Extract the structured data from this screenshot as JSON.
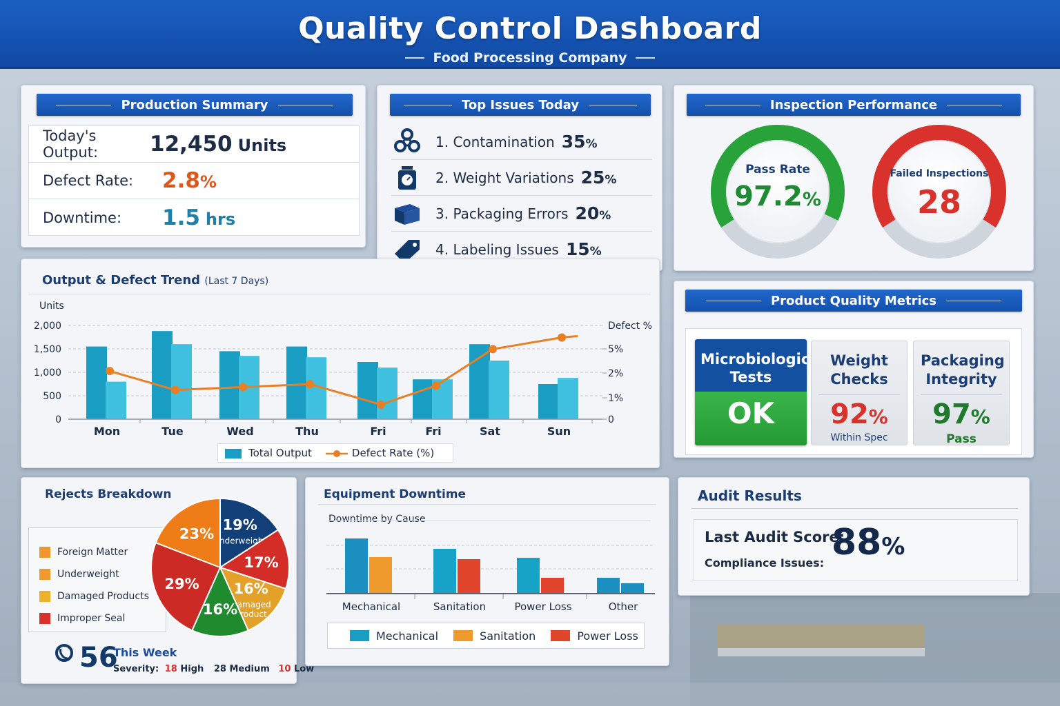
{
  "header": {
    "title": "Quality Control Dashboard",
    "subtitle": "Food Processing Company"
  },
  "production_summary": {
    "title": "Production Summary",
    "rows": [
      {
        "label": "Today's Output:",
        "value": "12,450",
        "unit": "Units",
        "color": "#1d2b44"
      },
      {
        "label": "Defect Rate:",
        "value": "2.8",
        "unit": "%",
        "color": "#e0571c"
      },
      {
        "label": "Downtime:",
        "value": "1.5",
        "unit": "hrs",
        "color": "#1f7fa8"
      }
    ]
  },
  "top_issues": {
    "title": "Top Issues Today",
    "items": [
      {
        "label": "1. Contamination",
        "pct": "35",
        "icon": "biohazard-icon"
      },
      {
        "label": "2. Weight Variations",
        "pct": "25",
        "icon": "scale-icon"
      },
      {
        "label": "3. Packaging Errors",
        "pct": "20",
        "icon": "box-icon"
      },
      {
        "label": "4. Labeling Issues",
        "pct": "15",
        "icon": "tag-icon"
      }
    ]
  },
  "inspection": {
    "title": "Inspection Performance",
    "pass": {
      "label": "Pass Rate",
      "value": "97.2",
      "unit": "%",
      "fraction": 0.972,
      "color": "#27a33a"
    },
    "failed": {
      "label": "Failed Inspections",
      "value": "28",
      "color": "#d9312b"
    }
  },
  "trend": {
    "title": "Output & Defect Trend",
    "title_note": "(Last 7 Days)",
    "legend": {
      "output": "Total Output",
      "defect": "Defect Rate (%)"
    }
  },
  "chart_data": {
    "type": "bar",
    "title": "Output & Defect Trend (Last 7 Days)",
    "ylabel": "Units",
    "y2label": "Defect %",
    "categories": [
      "Mon",
      "Tue",
      "Wed",
      "Thu",
      "Fri",
      "Fri",
      "Sat",
      "Sun"
    ],
    "y_ticks": [
      "0",
      "500",
      "1,000",
      "1,500",
      "2,000"
    ],
    "y2_ticks": [
      "0",
      "1%",
      "2%",
      "5%"
    ],
    "ylim": [
      0,
      2000
    ],
    "series": [
      {
        "name": "Total Output",
        "values": [
          1550,
          1880,
          1450,
          1550,
          1220,
          850,
          1600,
          750
        ],
        "color": "#1a9dc3"
      },
      {
        "name": "",
        "values": [
          800,
          1600,
          1350,
          1320,
          1100,
          850,
          1250,
          880
        ],
        "color": "#3fc0de"
      },
      {
        "name": "Defect Rate (%)",
        "values": [
          3.3,
          2.0,
          2.2,
          2.4,
          1.0,
          2.3,
          4.8,
          5.6
        ],
        "color": "#e97f22"
      }
    ],
    "legend_position": "bottom"
  },
  "quality_metrics": {
    "title": "Product Quality Metrics",
    "micro": {
      "title": "Microbiological Tests",
      "value": "OK"
    },
    "weight": {
      "title": "Weight Checks",
      "value": "92",
      "unit": "%",
      "note": "Within Spec"
    },
    "packaging": {
      "title": "Packaging Integrity",
      "value": "97",
      "unit": "%",
      "note": "Pass"
    }
  },
  "rejects": {
    "title": "Rejects Breakdown",
    "legend": [
      {
        "label": "Foreign Matter",
        "color": "#f0962e"
      },
      {
        "label": "Underweight",
        "color": "#ee9a2c"
      },
      {
        "label": "Damaged Products",
        "color": "#f0b12a"
      },
      {
        "label": "Improper Seal",
        "color": "#d9312b"
      }
    ],
    "slices": [
      {
        "pct": "19%",
        "label": "Underweight",
        "value": 19,
        "color": "#123f78"
      },
      {
        "pct": "17%",
        "label": "",
        "value": 17,
        "color": "#d42d27"
      },
      {
        "pct": "16%",
        "label": "Damaged product",
        "value": 16,
        "color": "#e3a12a"
      },
      {
        "pct": "16%",
        "label": "",
        "value": 16,
        "color": "#1f8b2e"
      },
      {
        "pct": "29%",
        "label": "",
        "value": 29,
        "color": "#cc2a24"
      },
      {
        "pct": "23%",
        "label": "",
        "value": 23,
        "color": "#ee7d18"
      }
    ],
    "week_count": "56",
    "week_label": "This Week",
    "severity_label": "Severity:",
    "high_count": "18",
    "high_label": "High",
    "medium_count": "28",
    "medium_label": "Medium",
    "low_count": "10",
    "low_label": "Low"
  },
  "downtime": {
    "title": "Equipment Downtime",
    "subtitle": "Downtime by Cause",
    "categories": [
      "Mechanical",
      "Sanitation",
      "Power Loss",
      "Other"
    ],
    "bars": [
      [
        {
          "v": 80,
          "c": "#1a8fc0"
        },
        {
          "v": 53,
          "c": "#ee9a2c"
        }
      ],
      [
        {
          "v": 65,
          "c": "#17a3c8"
        },
        {
          "v": 50,
          "c": "#e0442b"
        }
      ],
      [
        {
          "v": 52,
          "c": "#17a3c8"
        },
        {
          "v": 23,
          "c": "#e0442b"
        }
      ],
      [
        {
          "v": 23,
          "c": "#1a8fc0"
        },
        {
          "v": 15,
          "c": "#1a8fc0"
        }
      ]
    ],
    "legend": [
      {
        "label": "Mechanical",
        "color": "#1a9dc3"
      },
      {
        "label": "Sanitation",
        "color": "#ee9a2c"
      },
      {
        "label": "Power Loss",
        "color": "#e0442b"
      }
    ]
  },
  "audit": {
    "title": "Audit Results",
    "score_label": "Last Audit Score:",
    "score": "88",
    "score_unit": "%",
    "compliance_label": "Compliance Issues:"
  }
}
